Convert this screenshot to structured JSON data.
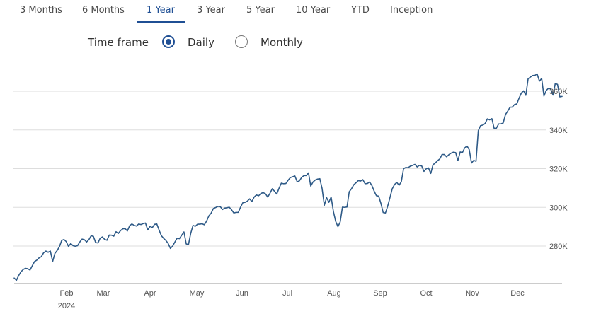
{
  "tabs": [
    {
      "label": "3 Months",
      "active": false
    },
    {
      "label": "6 Months",
      "active": false
    },
    {
      "label": "1 Year",
      "active": true
    },
    {
      "label": "3 Year",
      "active": false
    },
    {
      "label": "5 Year",
      "active": false
    },
    {
      "label": "10 Year",
      "active": false
    },
    {
      "label": "YTD",
      "active": false
    },
    {
      "label": "Inception",
      "active": false
    }
  ],
  "timeframe": {
    "label": "Time frame",
    "options": [
      {
        "label": "Daily",
        "selected": true
      },
      {
        "label": "Monthly",
        "selected": false
      }
    ]
  },
  "colors": {
    "accent": "#1f4f94",
    "line": "#2e5a87",
    "grid": "#dddddd"
  },
  "chart_data": {
    "type": "line",
    "title": "",
    "xlabel": "",
    "ylabel": "",
    "x_tick_labels": [
      "Feb",
      "Mar",
      "Apr",
      "May",
      "Jun",
      "Jul",
      "Aug",
      "Sep",
      "Oct",
      "Nov",
      "Dec"
    ],
    "x_year_label": "2024",
    "y_tick_labels": [
      "280K",
      "300K",
      "320K",
      "340K",
      "360K"
    ],
    "y_ticks": [
      280000,
      300000,
      320000,
      340000,
      360000
    ],
    "ylim": [
      260000,
      368000
    ],
    "grid": true,
    "series": [
      {
        "values": [
          263500,
          262300,
          264800,
          266700,
          267900,
          268500,
          268300,
          267600,
          269800,
          272000,
          272700,
          273900,
          274500,
          276500,
          277400,
          276800,
          277400,
          272000,
          276200,
          277700,
          279700,
          282900,
          283400,
          282300,
          279800,
          281300,
          280200,
          279900,
          280200,
          282100,
          283600,
          283300,
          282100,
          283300,
          285300,
          285000,
          281800,
          281600,
          284100,
          284700,
          283400,
          283000,
          285700,
          285600,
          285100,
          287400,
          286500,
          288000,
          288900,
          289000,
          287800,
          290500,
          291400,
          290700,
          290300,
          291400,
          291100,
          291600,
          291900,
          288300,
          290200,
          289500,
          291200,
          291400,
          288300,
          285400,
          284000,
          282900,
          281400,
          278800,
          280000,
          282100,
          284100,
          283800,
          285600,
          287300,
          281100,
          280800,
          286600,
          290700,
          290200,
          291300,
          291300,
          291500,
          291000,
          292900,
          295600,
          297000,
          299400,
          299900,
          300500,
          300400,
          298900,
          299600,
          299800,
          300100,
          298800,
          297100,
          297400,
          297400,
          300100,
          302400,
          302600,
          303200,
          304400,
          303000,
          305300,
          306400,
          306000,
          307200,
          307600,
          307000,
          305300,
          307300,
          309600,
          308300,
          306900,
          309900,
          312500,
          312200,
          312300,
          314000,
          315400,
          315800,
          316200,
          313200,
          313700,
          315500,
          316400,
          316400,
          317800,
          311000,
          313100,
          314100,
          314600,
          314800,
          309800,
          301100,
          305000,
          302600,
          305300,
          297900,
          292800,
          290000,
          292400,
          300100,
          300000,
          300200,
          308100,
          309600,
          311700,
          312700,
          313800,
          313600,
          314300,
          312200,
          312300,
          313100,
          311300,
          308400,
          306000,
          305800,
          302000,
          297300,
          297100,
          300700,
          305100,
          309600,
          311800,
          312900,
          311400,
          313200,
          320000,
          320600,
          320500,
          321300,
          321700,
          322200,
          320900,
          321700,
          321400,
          318600,
          319900,
          320400,
          317500,
          322000,
          322900,
          324100,
          325000,
          327300,
          327300,
          326100,
          327200,
          328000,
          328500,
          328300,
          324200,
          328600,
          328300,
          330700,
          331700,
          329800,
          322900,
          324300,
          323800,
          339600,
          342200,
          342500,
          343300,
          345700,
          345200,
          345800,
          340800,
          340900,
          343100,
          343100,
          343600,
          347900,
          349700,
          351700,
          351800,
          353100,
          353400,
          356400,
          359000,
          360200,
          357900,
          366400,
          367300,
          368100,
          368200,
          368900,
          365200,
          366600,
          357500,
          360400,
          361500,
          361200,
          358000,
          364000,
          363500,
          357100,
          357300
        ]
      }
    ]
  }
}
